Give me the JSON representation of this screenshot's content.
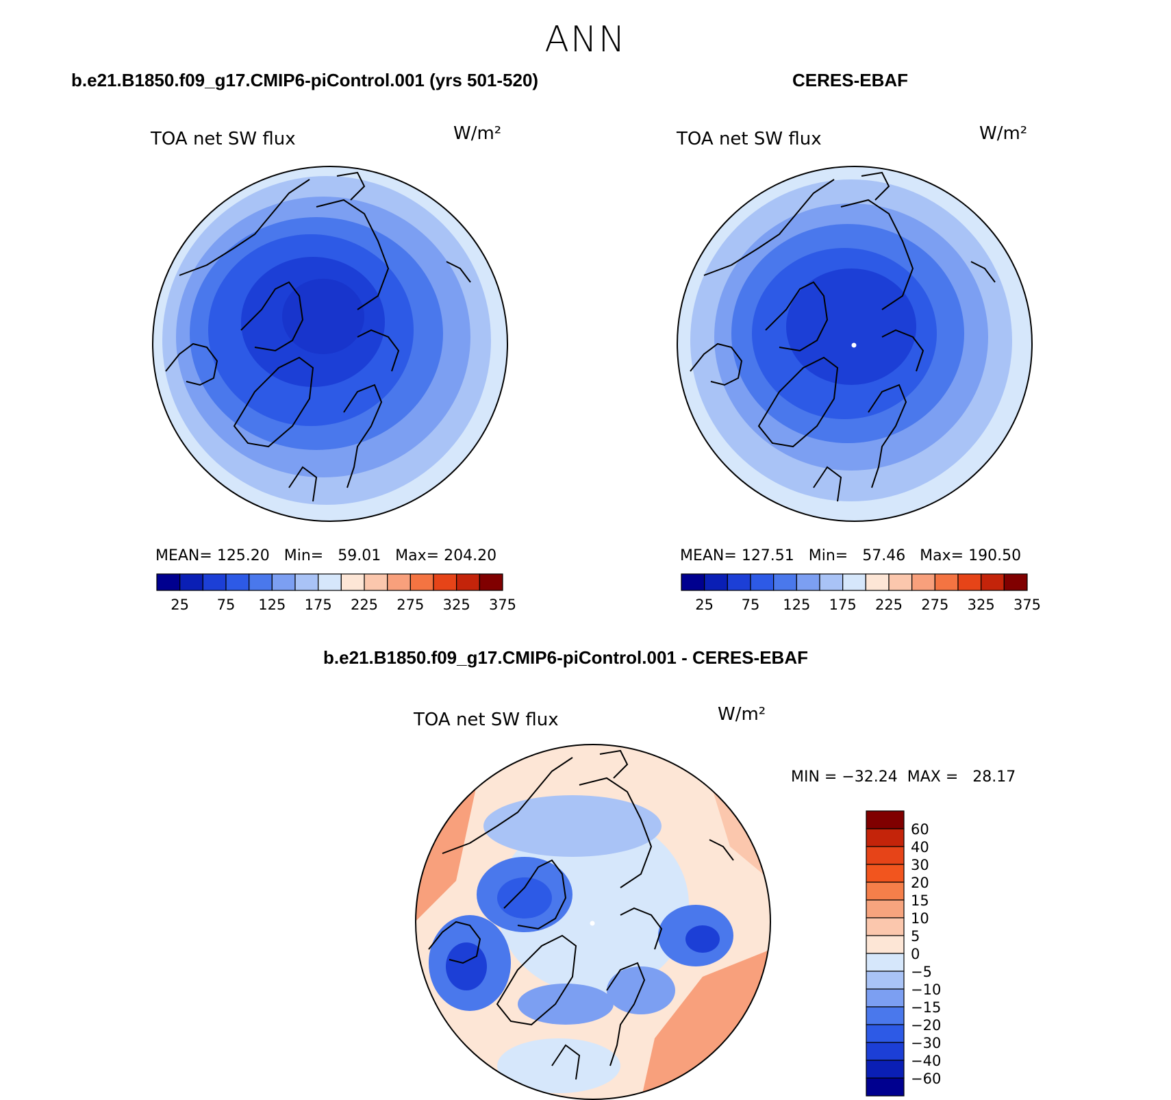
{
  "title": "ANN",
  "panel_top_left": {
    "case": "b.e21.B1850.f09_g17.CMIP6-piControl.001 (yrs 501-520)",
    "variable": "TOA net SW flux",
    "units": "W/m²",
    "stats": "MEAN= 125.20   Min=   59.01   Max= 204.20"
  },
  "panel_top_right": {
    "case": "CERES-EBAF",
    "variable": "TOA net SW flux",
    "units": "W/m²",
    "stats": "MEAN= 127.51   Min=   57.46   Max= 190.50"
  },
  "panel_bottom": {
    "case": "b.e21.B1850.f09_g17.CMIP6-piControl.001 - CERES-EBAF",
    "variable": "TOA net SW flux",
    "units": "W/m²",
    "stats": "MIN = −32.24  MAX =   28.17"
  },
  "colorbar_abs": {
    "labels": [
      "25",
      "75",
      "125",
      "175",
      "225",
      "275",
      "325",
      "375"
    ],
    "colors": [
      "#00008f",
      "#0a1fb5",
      "#1c3fd6",
      "#2d5ae6",
      "#4a78ec",
      "#7c9ff2",
      "#a9c3f6",
      "#d6e7fb",
      "#fde6d6",
      "#fbc7ad",
      "#f8a07c",
      "#f47442",
      "#e64418",
      "#c4240a",
      "#800000"
    ]
  },
  "colorbar_diff": {
    "labels": [
      "60",
      "40",
      "30",
      "20",
      "15",
      "10",
      "5",
      "0",
      "−5",
      "−10",
      "−15",
      "−20",
      "−30",
      "−40",
      "−60"
    ],
    "colors": [
      "#800000",
      "#c4240a",
      "#e64418",
      "#f2551e",
      "#f57f4a",
      "#f7a47e",
      "#fbc7ad",
      "#fde6d6",
      "#d6e7fb",
      "#a9c3f6",
      "#7c9ff2",
      "#4a78ec",
      "#2d5ae6",
      "#1c3fd6",
      "#0a1fb5",
      "#00008f"
    ]
  },
  "colors": {
    "map_outline": "#000000",
    "coast": "#000000"
  }
}
